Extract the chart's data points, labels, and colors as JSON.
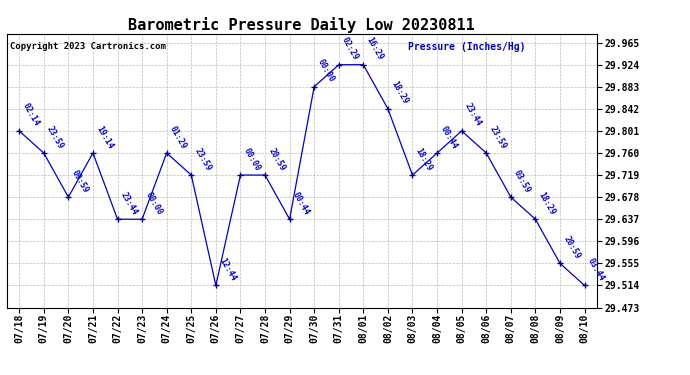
{
  "title": "Barometric Pressure Daily Low 20230811",
  "copyright": "Copyright 2023 Cartronics.com",
  "ylabel": "Pressure (Inches/Hg)",
  "dates": [
    "07/18",
    "07/19",
    "07/20",
    "07/21",
    "07/22",
    "07/23",
    "07/24",
    "07/25",
    "07/26",
    "07/27",
    "07/28",
    "07/29",
    "07/30",
    "07/31",
    "08/01",
    "08/02",
    "08/03",
    "08/04",
    "08/05",
    "08/06",
    "08/07",
    "08/08",
    "08/09",
    "08/10"
  ],
  "values": [
    29.801,
    29.76,
    29.678,
    29.76,
    29.637,
    29.637,
    29.76,
    29.719,
    29.514,
    29.719,
    29.719,
    29.637,
    29.883,
    29.924,
    29.924,
    29.842,
    29.719,
    29.76,
    29.801,
    29.76,
    29.678,
    29.637,
    29.555,
    29.514
  ],
  "time_labels": [
    "02:14",
    "23:59",
    "09:59",
    "19:14",
    "23:44",
    "00:00",
    "01:29",
    "23:59",
    "12:44",
    "00:00",
    "20:59",
    "00:44",
    "00:00",
    "02:29",
    "16:29",
    "18:29",
    "18:29",
    "00:44",
    "23:44",
    "23:59",
    "03:59",
    "18:29",
    "20:59",
    "03:44"
  ],
  "ylim_min": 29.473,
  "ylim_max": 29.9815,
  "yticks": [
    29.473,
    29.514,
    29.555,
    29.596,
    29.637,
    29.678,
    29.719,
    29.76,
    29.801,
    29.842,
    29.883,
    29.924,
    29.965
  ],
  "line_color": "#0000cc",
  "marker_color": "#000099",
  "label_color": "#0000cc",
  "title_color": "#000000",
  "copyright_color": "#000000",
  "ylabel_color": "#0000cc",
  "bg_color": "#ffffff",
  "grid_color": "#bbbbbb",
  "title_fontsize": 11,
  "label_fontsize": 6,
  "tick_fontsize": 7,
  "copyright_fontsize": 6.5
}
